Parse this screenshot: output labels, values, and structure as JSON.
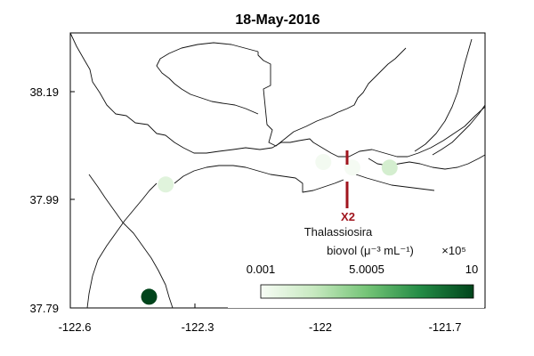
{
  "title": "18-May-2016",
  "x_ticks": [
    "-122.6",
    "-122.3",
    "-122",
    "-121.7"
  ],
  "y_ticks": [
    "38.19",
    "37.99",
    "37.79"
  ],
  "marker": {
    "label": "X2",
    "color": "#a0151e"
  },
  "colorbar": {
    "title_line1": "Thalassiosira",
    "title_line2": "biovol (μ⁻³ mL⁻¹)",
    "exponent": "×10⁵",
    "tick_labels": [
      "0.001",
      "5.0005",
      "10"
    ],
    "min_color": "#f7fcf5",
    "max_color": "#00441b"
  },
  "map_data": {
    "lon_range": [
      -122.6,
      -121.6
    ],
    "lat_range": [
      37.79,
      38.28
    ],
    "colormap": "Greens",
    "value_range": [
      0.001,
      10
    ],
    "samples": [
      {
        "lon": -122.41,
        "lat": 37.81,
        "value": 10
      },
      {
        "lon": -122.37,
        "lat": 38.01,
        "value": 1.2
      },
      {
        "lon": -121.99,
        "lat": 38.05,
        "value": 0.2
      },
      {
        "lon": -121.92,
        "lat": 38.04,
        "value": 0.1
      },
      {
        "lon": -121.83,
        "lat": 38.04,
        "value": 1.8
      }
    ],
    "x2_lon": -121.94,
    "x2_lat_range": [
      37.97,
      38.06
    ]
  }
}
